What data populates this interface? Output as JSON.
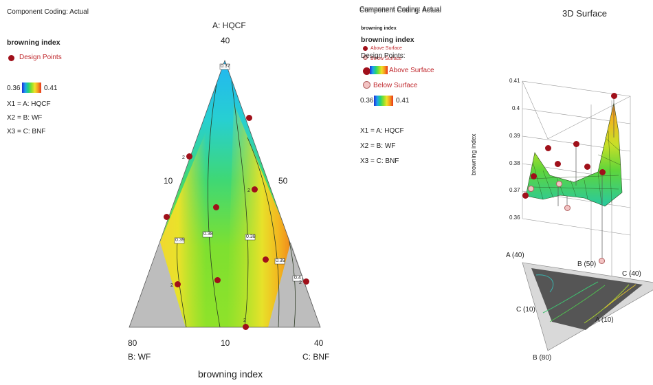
{
  "left_panel": {
    "coding": "Component Coding: Actual",
    "response": "browning index",
    "design_points": "Design Points",
    "scale_min": "0.36",
    "scale_max": "0.41",
    "x1": "X1 = A: HQCF",
    "x2": "X2 = B: WF",
    "x3": "X3 = C: BNF"
  },
  "middle_panel": {
    "coding_back": "Component Coding: Actual",
    "coding_front": "Component Coding: Actual",
    "response_back": "browning index",
    "response_front": "browning index",
    "above_surface_small": "Above Surface",
    "below_surface_small": "Below Surface",
    "design_points": "Design Points:",
    "above_surface": "Above Surface",
    "below_surface": "Below Surface",
    "scale_min": "0.36",
    "scale_max": "0.41",
    "x1": "X1 = A: HQCF",
    "x2": "X2 = B: WF",
    "x3": "X3 = C: BNF"
  },
  "chart_data": [
    {
      "type": "ternary-contour",
      "title": "browning index",
      "vertices": {
        "top": {
          "label": "A: HQCF",
          "value": "40"
        },
        "bottom_left": {
          "label": "B: WF",
          "value": "80"
        },
        "bottom_right": {
          "label": "C: BNF",
          "value": "40"
        }
      },
      "edge_ticks": {
        "left": "10",
        "right": "50",
        "bottom": "10"
      },
      "contour_labels": [
        "0.37",
        "0.39",
        "0.38",
        "0.38",
        "0.39",
        "0.4"
      ],
      "color_scale": {
        "min": 0.36,
        "max": 0.41,
        "low_color": "#1e2bd6",
        "high_color": "#e8321c"
      },
      "replicate_labels": [
        "2",
        "2",
        "2",
        "2",
        "2"
      ],
      "design_points_count": 11
    },
    {
      "type": "surface-3d",
      "title": "3D Surface",
      "zlabel": "browning index",
      "z_ticks": [
        "0.41",
        "0.4",
        "0.39",
        "0.38",
        "0.37",
        "0.36"
      ],
      "zlim": [
        0.36,
        0.41
      ],
      "axis_labels": [
        "A (40)",
        "B (50)",
        "C (40)",
        "C (10)",
        "A (10)",
        "B (80)"
      ]
    }
  ]
}
